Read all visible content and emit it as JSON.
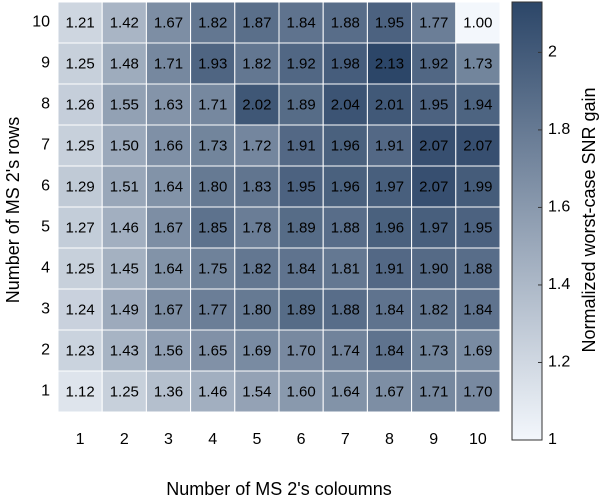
{
  "chart_data": {
    "type": "heatmap",
    "x_label": "Number of MS 2's coloumns",
    "y_label": "Number of MS 2's rows",
    "x_categories": [
      "1",
      "2",
      "3",
      "4",
      "5",
      "6",
      "7",
      "8",
      "9",
      "10"
    ],
    "y_categories": [
      "1",
      "2",
      "3",
      "4",
      "5",
      "6",
      "7",
      "8",
      "9",
      "10"
    ],
    "values": [
      [
        1.12,
        1.25,
        1.36,
        1.46,
        1.54,
        1.6,
        1.64,
        1.67,
        1.71,
        1.7
      ],
      [
        1.23,
        1.43,
        1.56,
        1.65,
        1.69,
        1.7,
        1.74,
        1.84,
        1.73,
        1.69
      ],
      [
        1.24,
        1.49,
        1.67,
        1.77,
        1.8,
        1.89,
        1.88,
        1.84,
        1.82,
        1.84
      ],
      [
        1.25,
        1.45,
        1.64,
        1.75,
        1.82,
        1.84,
        1.81,
        1.91,
        1.9,
        1.88
      ],
      [
        1.27,
        1.46,
        1.67,
        1.85,
        1.78,
        1.89,
        1.88,
        1.96,
        1.97,
        1.95
      ],
      [
        1.29,
        1.51,
        1.64,
        1.8,
        1.83,
        1.95,
        1.96,
        1.97,
        2.07,
        1.99
      ],
      [
        1.25,
        1.5,
        1.66,
        1.73,
        1.72,
        1.91,
        1.96,
        1.91,
        2.07,
        2.07
      ],
      [
        1.26,
        1.55,
        1.63,
        1.71,
        2.02,
        1.89,
        2.04,
        2.01,
        1.95,
        1.94
      ],
      [
        1.25,
        1.48,
        1.71,
        1.93,
        1.82,
        1.92,
        1.98,
        2.13,
        1.92,
        1.73
      ],
      [
        1.21,
        1.42,
        1.67,
        1.82,
        1.87,
        1.84,
        1.88,
        1.95,
        1.77,
        1.0
      ]
    ],
    "value_labels": [
      [
        "1.12",
        "1.25",
        "1.36",
        "1.46",
        "1.54",
        "1.60",
        "1.64",
        "1.67",
        "1.71",
        "1.70"
      ],
      [
        "1.23",
        "1.43",
        "1.56",
        "1.65",
        "1.69",
        "1.70",
        "1.74",
        "1.84",
        "1.73",
        "1.69"
      ],
      [
        "1.24",
        "1.49",
        "1.67",
        "1.77",
        "1.80",
        "1.89",
        "1.88",
        "1.84",
        "1.82",
        "1.84"
      ],
      [
        "1.25",
        "1.45",
        "1.64",
        "1.75",
        "1.82",
        "1.84",
        "1.81",
        "1.91",
        "1.90",
        "1.88"
      ],
      [
        "1.27",
        "1.46",
        "1.67",
        "1.85",
        "1.78",
        "1.89",
        "1.88",
        "1.96",
        "1.97",
        "1.95"
      ],
      [
        "1.29",
        "1.51",
        "1.64",
        "1.80",
        "1.83",
        "1.95",
        "1.96",
        "1.97",
        "2.07",
        "1.99"
      ],
      [
        "1.25",
        "1.50",
        "1.66",
        "1.73",
        "1.72",
        "1.91",
        "1.96",
        "1.91",
        "2.07",
        "2.07"
      ],
      [
        "1.26",
        "1.55",
        "1.63",
        "1.71",
        "2.02",
        "1.89",
        "2.04",
        "2.01",
        "1.95",
        "1.94"
      ],
      [
        "1.25",
        "1.48",
        "1.71",
        "1.93",
        "1.82",
        "1.92",
        "1.98",
        "2.13",
        "1.92",
        "1.73"
      ],
      [
        "1.21",
        "1.42",
        "1.67",
        "1.82",
        "1.87",
        "1.84",
        "1.88",
        "1.95",
        "1.77",
        "1.00"
      ]
    ],
    "colormap": [
      "#f3f7fc",
      "#2c4668"
    ],
    "clim": [
      1,
      2.13
    ],
    "colorbar_ticks": [
      1,
      1.2,
      1.4,
      1.6,
      1.8,
      2
    ],
    "colorbar_label": "Normalized worst-case SNR gain"
  }
}
